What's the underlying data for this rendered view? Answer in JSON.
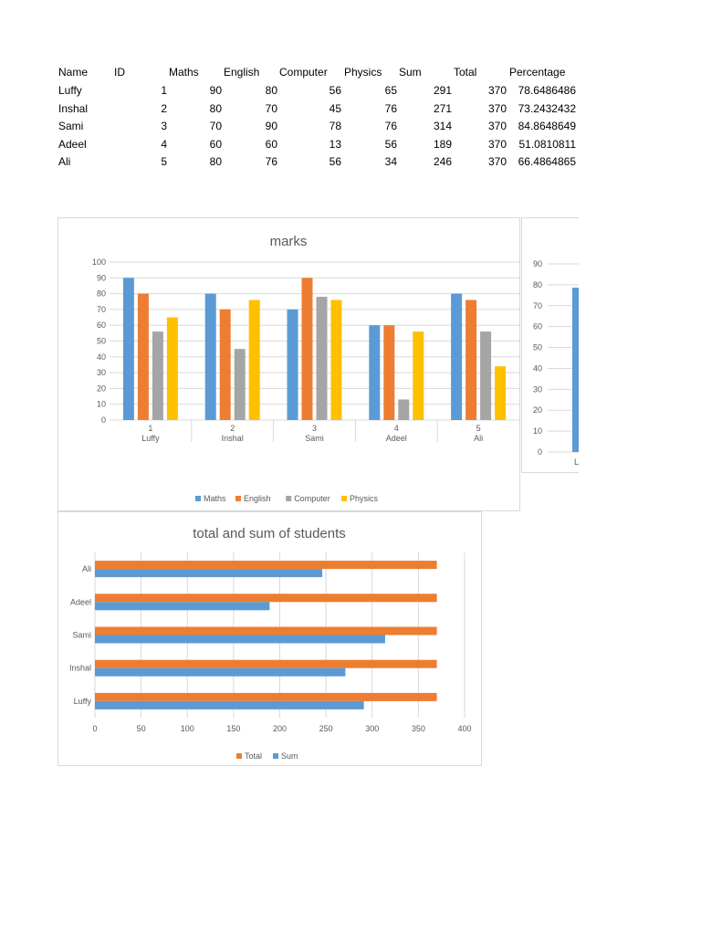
{
  "table": {
    "headers": [
      "Name",
      "ID",
      "Maths",
      "English",
      "Computer",
      "Physics",
      "Sum",
      "Total",
      "Percentage"
    ],
    "rows": [
      [
        "Luffy",
        "1",
        "90",
        "80",
        "56",
        "65",
        "291",
        "370",
        "78.6486486"
      ],
      [
        "Inshal",
        "2",
        "80",
        "70",
        "45",
        "76",
        "271",
        "370",
        "73.2432432"
      ],
      [
        "Sami",
        "3",
        "70",
        "90",
        "78",
        "76",
        "314",
        "370",
        "84.8648649"
      ],
      [
        "Adeel",
        "4",
        "60",
        "60",
        "13",
        "56",
        "189",
        "370",
        "51.0810811"
      ],
      [
        "Ali",
        "5",
        "80",
        "76",
        "56",
        "34",
        "246",
        "370",
        "66.4864865"
      ]
    ]
  },
  "colors": {
    "blue": "#5b9bd5",
    "orange": "#ed7d31",
    "gray": "#a5a5a5",
    "yellow": "#ffc000",
    "grid": "#d9d9d9",
    "axis_text": "#595959"
  },
  "chart_data": [
    {
      "type": "bar",
      "title": "marks",
      "categories": [
        [
          "1",
          "Luffy"
        ],
        [
          "2",
          "Inshal"
        ],
        [
          "3",
          "Sami"
        ],
        [
          "4",
          "Adeel"
        ],
        [
          "5",
          "Ali"
        ]
      ],
      "series": [
        {
          "name": "Maths",
          "values": [
            90,
            80,
            70,
            60,
            80
          ],
          "color": "#5b9bd5"
        },
        {
          "name": "English",
          "values": [
            80,
            70,
            90,
            60,
            76
          ],
          "color": "#ed7d31"
        },
        {
          "name": "Computer",
          "values": [
            56,
            45,
            78,
            13,
            56
          ],
          "color": "#a5a5a5"
        },
        {
          "name": "Physics",
          "values": [
            65,
            76,
            76,
            56,
            34
          ],
          "color": "#ffc000"
        }
      ],
      "ylim": [
        0,
        100
      ],
      "yticks": [
        0,
        10,
        20,
        30,
        40,
        50,
        60,
        70,
        80,
        90,
        100
      ],
      "grid": true,
      "legend": "bottom"
    },
    {
      "type": "bar",
      "title": "",
      "ylim": [
        0,
        90
      ],
      "yticks": [
        0,
        10,
        20,
        30,
        40,
        50,
        60,
        70,
        80,
        90
      ],
      "visible_values": [
        78.6486486
      ],
      "visible_category_fragment": "L",
      "grid": true,
      "note": "partially visible chart, cut off at right"
    },
    {
      "type": "bar",
      "orientation": "horizontal",
      "title": "total and sum of students",
      "categories": [
        "Luffy",
        "Inshal",
        "Sami",
        "Adeel",
        "Ali"
      ],
      "series": [
        {
          "name": "Sum",
          "values": [
            291,
            271,
            314,
            189,
            246
          ],
          "color": "#5b9bd5"
        },
        {
          "name": "Total",
          "values": [
            370,
            370,
            370,
            370,
            370
          ],
          "color": "#ed7d31"
        }
      ],
      "xlim": [
        0,
        400
      ],
      "xticks": [
        0,
        50,
        100,
        150,
        200,
        250,
        300,
        350,
        400
      ],
      "grid": true,
      "legend": "bottom",
      "legend_order": [
        "Total",
        "Sum"
      ]
    }
  ]
}
